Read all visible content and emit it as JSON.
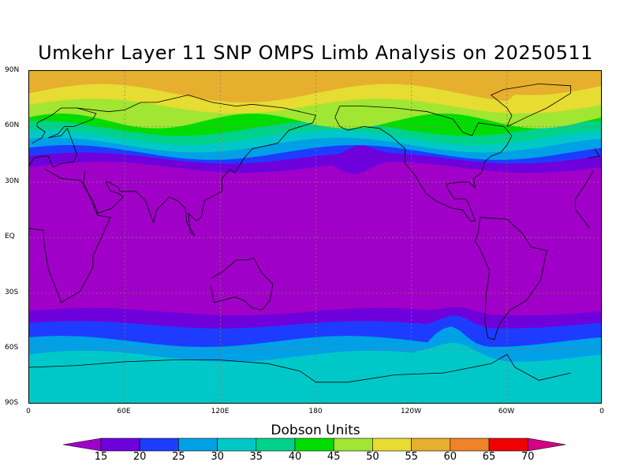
{
  "title": "Umkehr Layer 11 SNP OMPS Limb Analysis on 20250511",
  "map": {
    "projection": "cylindrical equidistant",
    "lon_range": [
      0,
      360
    ],
    "lat_range": [
      -90,
      90
    ],
    "lat_labels": [
      "90N",
      "60N",
      "30N",
      "EQ",
      "30S",
      "60S",
      "90S"
    ],
    "lon_labels": [
      "0",
      "60E",
      "120E",
      "180",
      "120W",
      "60W",
      "0"
    ],
    "grid": true,
    "coastlines": true
  },
  "colorbar": {
    "title": "Dobson Units",
    "labels": [
      "15",
      "20",
      "25",
      "30",
      "35",
      "40",
      "45",
      "50",
      "55",
      "60",
      "65",
      "70"
    ],
    "colors": [
      "#a000c8",
      "#6e00dc",
      "#1e3cff",
      "#00a0e6",
      "#00c8c8",
      "#00d28c",
      "#00dc00",
      "#a0e632",
      "#e6dc32",
      "#e6af2d",
      "#f08228",
      "#f00000",
      "#d20082"
    ]
  },
  "chart_data": {
    "type": "heatmap",
    "title": "Umkehr Layer 11 SNP OMPS Limb Analysis on 20250511",
    "xlabel": "",
    "ylabel": "",
    "units": "Dobson Units",
    "levels": [
      15,
      20,
      25,
      30,
      35,
      40,
      45,
      50,
      55,
      60,
      65,
      70
    ],
    "xlim": [
      0,
      360
    ],
    "ylim": [
      -90,
      90
    ],
    "zonal_pattern_north": [
      {
        "lat_band": "80N-90N",
        "value_range": "55-60"
      },
      {
        "lat_band": "70N-80N",
        "value_range": "50-60"
      },
      {
        "lat_band": "60N-70N",
        "value_range": "40-50"
      },
      {
        "lat_band": "45N-60N",
        "value_range": "25-40"
      },
      {
        "lat_band": "35N-45N",
        "value_range": "15-25"
      }
    ],
    "zonal_pattern_tropics": {
      "lat_band": "40S-35N",
      "value_range": "<15"
    },
    "zonal_pattern_south": [
      {
        "lat_band": "40S-50S",
        "value_range": "15-25"
      },
      {
        "lat_band": "50S-60S",
        "value_range": "25-30"
      },
      {
        "lat_band": "60S-90S",
        "value_range": "30-35"
      }
    ]
  }
}
